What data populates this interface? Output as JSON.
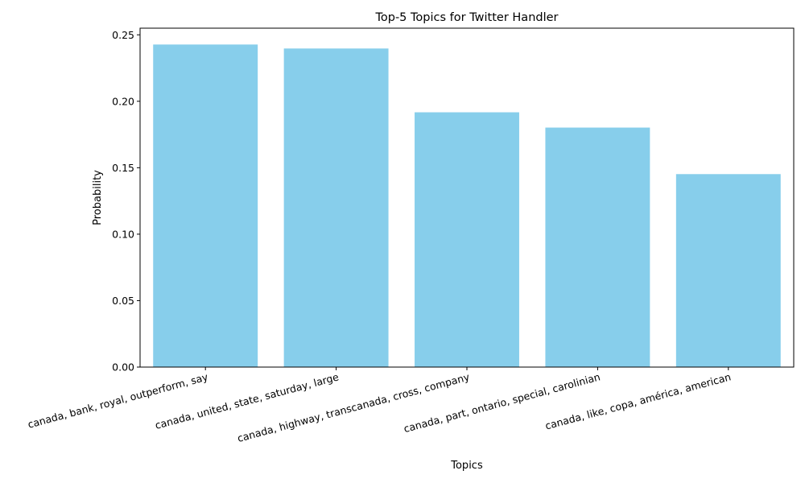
{
  "chart_data": {
    "type": "bar",
    "title": "Top-5 Topics for Twitter Handler",
    "xlabel": "Topics",
    "ylabel": "Probability",
    "categories": [
      "canada, bank, royal, outperform, say",
      "canada, united, state, saturday, large",
      "canada, highway, transcanada, cross, company",
      "canada, part, ontario, special, carolinian",
      "canada, like, copa, américa, american"
    ],
    "values": [
      0.2427,
      0.2397,
      0.1917,
      0.1802,
      0.1452
    ],
    "ylim": [
      0,
      0.255
    ],
    "yticks": [
      "0.00",
      "0.05",
      "0.10",
      "0.15",
      "0.20",
      "0.25"
    ],
    "bar_color": "#87CEEB",
    "grid": false
  }
}
